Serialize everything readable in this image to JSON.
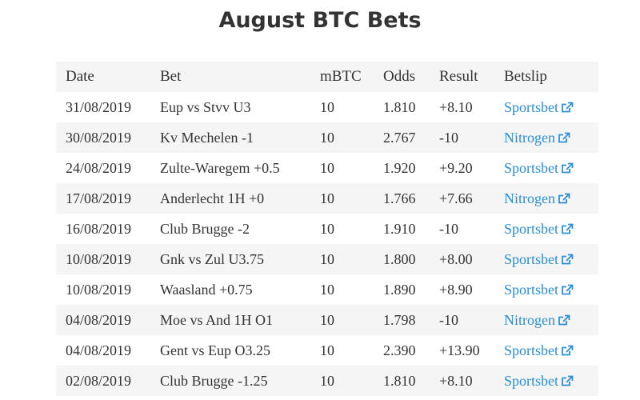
{
  "header": {
    "title": "August BTC Bets"
  },
  "table": {
    "columns": [
      "Date",
      "Bet",
      "mBTC",
      "Odds",
      "Result",
      "Betslip"
    ],
    "rows": [
      [
        "31/08/2019",
        "Eup vs Stvv U3",
        "10",
        "1.810",
        "+8.10",
        "Sportsbet"
      ],
      [
        "30/08/2019",
        "Kv Mechelen -1",
        "10",
        "2.767",
        "-10",
        "Nitrogen"
      ],
      [
        "24/08/2019",
        "Zulte-Waregem +0.5",
        "10",
        "1.920",
        "+9.20",
        "Sportsbet"
      ],
      [
        "17/08/2019",
        "Anderlecht 1H +0",
        "10",
        "1.766",
        "+7.66",
        "Nitrogen"
      ],
      [
        "16/08/2019",
        "Club Brugge -2",
        "10",
        "1.910",
        "-10",
        "Sportsbet"
      ],
      [
        "10/08/2019",
        "Gnk vs Zul U3.75",
        "10",
        "1.800",
        "+8.00",
        "Sportsbet"
      ],
      [
        "10/08/2019",
        "Waasland +0.75",
        "10",
        "1.890",
        "+8.90",
        "Sportsbet"
      ],
      [
        "04/08/2019",
        "Moe vs And 1H O1",
        "10",
        "1.798",
        "-10",
        "Nitrogen"
      ],
      [
        "04/08/2019",
        "Gent vs Eup O3.25",
        "10",
        "2.390",
        "+13.90",
        "Sportsbet"
      ],
      [
        "02/08/2019",
        "Club Brugge -1.25",
        "10",
        "1.810",
        "+8.10",
        "Sportsbet"
      ]
    ]
  }
}
